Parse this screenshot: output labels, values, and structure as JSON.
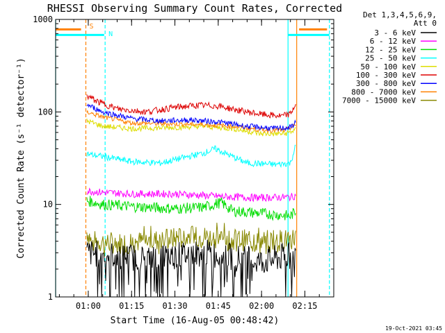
{
  "chart_data": {
    "type": "line",
    "title": "RHESSI Observing Summary Count Rates, Corrected",
    "xlabel": "Start Time (16-Aug-05 00:48:42)",
    "ylabel": "Corrected Count Rate (s⁻¹ detector⁻¹)",
    "x_axis": {
      "start": "00:48:42",
      "end": "02:25:00",
      "ticks": [
        "01:00",
        "01:15",
        "01:30",
        "01:45",
        "02:00",
        "02:15"
      ]
    },
    "y_axis": {
      "scale": "log",
      "ylim": [
        1,
        1000
      ],
      "ticks": [
        "1",
        "10",
        "100",
        "1000"
      ]
    },
    "legend": {
      "placement": "right",
      "header": [
        "Det 1,3,4,5,6,9,",
        "Att 0"
      ],
      "entries": [
        {
          "label": "3 - 6 keV",
          "color": "#000000"
        },
        {
          "label": "6 - 12 keV",
          "color": "#ff00ff"
        },
        {
          "label": "12 - 25 keV",
          "color": "#00dd00"
        },
        {
          "label": "25 - 50 keV",
          "color": "#00ffff"
        },
        {
          "label": "50 - 100 keV",
          "color": "#dddd00"
        },
        {
          "label": "100 - 300 keV",
          "color": "#dd0000"
        },
        {
          "label": "300 - 800 keV",
          "color": "#0000ff"
        },
        {
          "label": "800 - 7000 keV",
          "color": "#ff8000"
        },
        {
          "label": "7000 - 15000 keV",
          "color": "#888800"
        }
      ]
    },
    "markers": [
      {
        "label": "S",
        "time": "00:59:10",
        "color": "#ff8000",
        "style": "dashed"
      },
      {
        "label": "N",
        "time": "01:05:50",
        "color": "#00ffff",
        "style": "dashed"
      }
    ],
    "interval_lines": [
      {
        "time": "00:48:42",
        "color": "#00ffff"
      },
      {
        "time": "02:09:10",
        "color": "#00ffff"
      },
      {
        "time": "02:12:10",
        "color": "#ff8000"
      },
      {
        "time": "02:23:30",
        "color": "#00ffff",
        "style": "dashed"
      }
    ],
    "flag_bars": [
      {
        "color": "#ff8000",
        "level": 780,
        "ranges": [
          [
            "00:48:42",
            "00:57:30"
          ],
          [
            "02:13:00",
            "02:22:40"
          ]
        ]
      },
      {
        "color": "#00ffff",
        "level": 680,
        "ranges": [
          [
            "00:48:42",
            "01:05:30"
          ],
          [
            "02:09:10",
            "02:23:30"
          ]
        ]
      }
    ],
    "data_window": [
      "00:59:30",
      "02:12:00"
    ],
    "series": [
      {
        "name": "100 - 300 keV",
        "color": "#dd0000",
        "points": [
          [
            "00:59:30",
            150
          ],
          [
            "01:03:00",
            130
          ],
          [
            "01:10:00",
            108
          ],
          [
            "01:20:00",
            100
          ],
          [
            "01:30:00",
            112
          ],
          [
            "01:38:00",
            118
          ],
          [
            "01:45:00",
            116
          ],
          [
            "01:52:00",
            104
          ],
          [
            "02:00:00",
            94
          ],
          [
            "02:07:00",
            90
          ],
          [
            "02:10:00",
            95
          ],
          [
            "02:12:00",
            125
          ]
        ]
      },
      {
        "name": "300 - 800 keV",
        "color": "#0000ff",
        "points": [
          [
            "00:59:30",
            120
          ],
          [
            "01:05:00",
            100
          ],
          [
            "01:15:00",
            85
          ],
          [
            "01:25:00",
            80
          ],
          [
            "01:35:00",
            82
          ],
          [
            "01:45:00",
            78
          ],
          [
            "01:55:00",
            70
          ],
          [
            "02:05:00",
            66
          ],
          [
            "02:10:00",
            68
          ],
          [
            "02:12:00",
            78
          ]
        ]
      },
      {
        "name": "800 - 7000 keV",
        "color": "#ff8000",
        "points": [
          [
            "00:59:30",
            100
          ],
          [
            "01:05:00",
            88
          ],
          [
            "01:15:00",
            76
          ],
          [
            "01:30:00",
            74
          ],
          [
            "01:40:00",
            73
          ],
          [
            "01:50:00",
            70
          ],
          [
            "02:00:00",
            64
          ],
          [
            "02:08:00",
            63
          ],
          [
            "02:12:00",
            72
          ]
        ]
      },
      {
        "name": "50 - 100 keV",
        "color": "#dddd00",
        "points": [
          [
            "00:59:30",
            80
          ],
          [
            "01:05:00",
            70
          ],
          [
            "01:15:00",
            66
          ],
          [
            "01:30:00",
            68
          ],
          [
            "01:40:00",
            70
          ],
          [
            "01:50:00",
            66
          ],
          [
            "02:00:00",
            58
          ],
          [
            "02:08:00",
            58
          ],
          [
            "02:12:00",
            64
          ]
        ]
      },
      {
        "name": "25 - 50 keV",
        "color": "#00ffff",
        "points": [
          [
            "00:59:30",
            35
          ],
          [
            "01:05:00",
            33
          ],
          [
            "01:15:00",
            29
          ],
          [
            "01:25:00",
            28
          ],
          [
            "01:33:00",
            32
          ],
          [
            "01:40:00",
            36
          ],
          [
            "01:44:00",
            40
          ],
          [
            "01:48:00",
            35
          ],
          [
            "01:55:00",
            28
          ],
          [
            "02:05:00",
            27
          ],
          [
            "02:10:00",
            28
          ],
          [
            "02:12:00",
            45
          ]
        ]
      },
      {
        "name": "6 - 12 keV",
        "color": "#ff00ff",
        "points": [
          [
            "00:59:30",
            14
          ],
          [
            "01:05:00",
            13.5
          ],
          [
            "01:15:00",
            13
          ],
          [
            "01:30:00",
            13
          ],
          [
            "01:40:00",
            12.5
          ],
          [
            "01:50:00",
            12
          ],
          [
            "02:00:00",
            11.8
          ],
          [
            "02:10:00",
            12
          ],
          [
            "02:12:00",
            12.5
          ]
        ]
      },
      {
        "name": "12 - 25 keV",
        "color": "#00dd00",
        "points": [
          [
            "00:59:30",
            11
          ],
          [
            "01:05:00",
            10
          ],
          [
            "01:15:00",
            9.5
          ],
          [
            "01:30:00",
            9
          ],
          [
            "01:40:00",
            9.3
          ],
          [
            "01:46:00",
            10.5
          ],
          [
            "01:50:00",
            8.5
          ],
          [
            "02:00:00",
            8
          ],
          [
            "02:10:00",
            7.5
          ],
          [
            "02:12:00",
            8.5
          ]
        ]
      },
      {
        "name": "7000 - 15000 keV",
        "color": "#888800",
        "points": [
          [
            "00:59:30",
            5
          ],
          [
            "01:02:00",
            4
          ],
          [
            "01:10:00",
            3.8
          ],
          [
            "01:20:00",
            4
          ],
          [
            "01:30:00",
            4.3
          ],
          [
            "01:40:00",
            4.5
          ],
          [
            "01:50:00",
            4.2
          ],
          [
            "02:00:00",
            4
          ],
          [
            "02:10:00",
            4.2
          ],
          [
            "02:12:00",
            4.5
          ]
        ]
      },
      {
        "name": "3 - 6 keV",
        "color": "#000000",
        "points": [
          [
            "00:59:30",
            3
          ],
          [
            "01:10:00",
            2.8
          ],
          [
            "01:20:00",
            2.6
          ],
          [
            "01:30:00",
            2.8
          ],
          [
            "01:40:00",
            3
          ],
          [
            "01:50:00",
            2.7
          ],
          [
            "02:00:00",
            2.4
          ],
          [
            "02:10:00",
            2.8
          ],
          [
            "02:12:00",
            3
          ]
        ]
      }
    ]
  },
  "timestamp": "19-Oct-2021 03:45"
}
